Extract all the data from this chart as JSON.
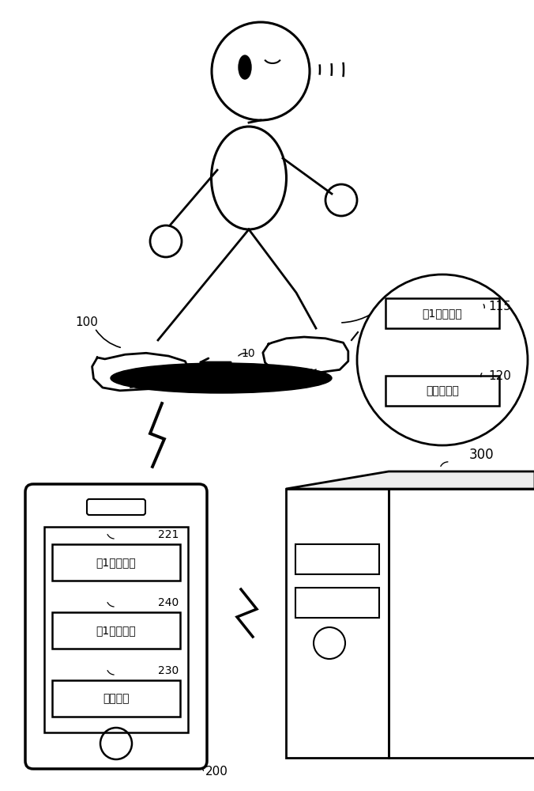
{
  "bg_color": "#ffffff",
  "line_color": "#000000",
  "label_100_left": "100",
  "label_100_right": "100",
  "label_10": "10",
  "label_115": "115",
  "label_120": "120",
  "label_200": "200",
  "label_300": "300",
  "label_221": "221",
  "label_240": "240",
  "label_230": "230",
  "text_fasong": "第1发送部件",
  "text_chuanganqi": "传感器部件",
  "text_jieshou": "第1接收部件",
  "text_jiyi": "第1记忆部件",
  "text_tishi": "提示部件"
}
